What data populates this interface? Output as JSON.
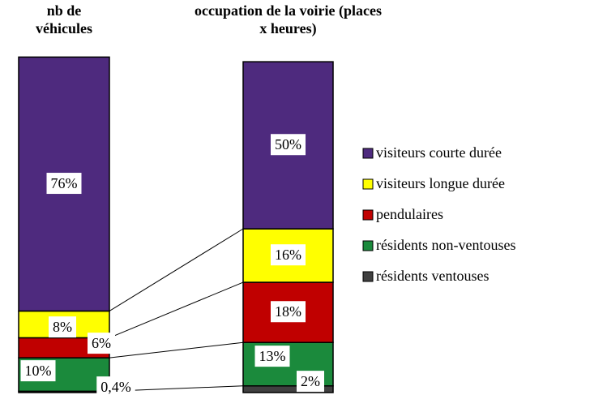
{
  "chart_data": {
    "type": "stacked_bar",
    "categories": [
      "nb de véhicules",
      "occupation de la voirie (places x heures)"
    ],
    "ylim": [
      0,
      100
    ],
    "series": [
      {
        "name": "résidents ventouses",
        "color": "#404040",
        "values": [
          0.4,
          2
        ],
        "value_labels": [
          "0,4%",
          "2%"
        ]
      },
      {
        "name": "résidents non-ventouses",
        "color": "#1b8a3c",
        "values": [
          10,
          13
        ],
        "value_labels": [
          "10%",
          "13%"
        ]
      },
      {
        "name": "pendulaires",
        "color": "#c00000",
        "values": [
          6,
          18
        ],
        "value_labels": [
          "6%",
          "18%"
        ]
      },
      {
        "name": "visiteurs longue durée",
        "color": "#ffff00",
        "values": [
          8,
          16
        ],
        "value_labels": [
          "8%",
          "16%"
        ]
      },
      {
        "name": "visiteurs courte durée",
        "color": "#4e2a7e",
        "values": [
          76,
          50
        ],
        "value_labels": [
          "76%",
          "50%"
        ]
      }
    ]
  }
}
